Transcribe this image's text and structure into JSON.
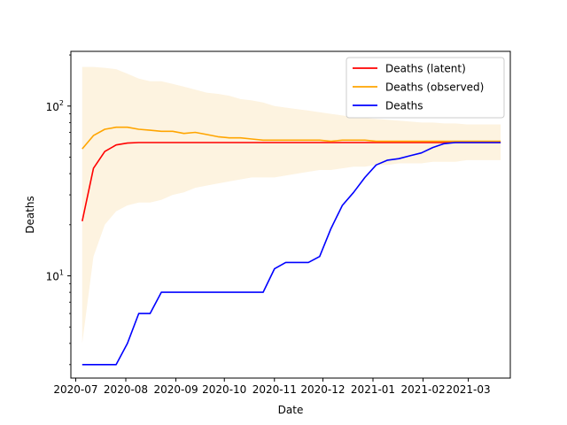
{
  "chart_data": {
    "type": "line",
    "title": "",
    "xlabel": "Date",
    "ylabel": "Deaths",
    "y_scale": "log",
    "ylim": [
      2.5,
      210
    ],
    "xlim": [
      "2020-06-28",
      "2021-03-27"
    ],
    "x_ticks": [
      "2020-07",
      "2020-08",
      "2020-09",
      "2020-10",
      "2020-11",
      "2020-12",
      "2021-01",
      "2021-02",
      "2021-03"
    ],
    "x_tick_dates": [
      "2020-07-01",
      "2020-08-01",
      "2020-09-01",
      "2020-10-01",
      "2020-11-01",
      "2020-12-01",
      "2021-01-01",
      "2021-02-01",
      "2021-03-01"
    ],
    "y_ticks": [
      {
        "value": 10,
        "base": "10",
        "exp": "1"
      },
      {
        "value": 100,
        "base": "10",
        "exp": "2"
      }
    ],
    "y_minor_ticks": [
      3,
      4,
      5,
      6,
      7,
      8,
      9,
      20,
      30,
      40,
      50,
      60,
      70,
      80,
      90,
      200
    ],
    "legend_position": "top-right",
    "grid": false,
    "band": {
      "color": "#fdf3e0",
      "dates": [
        "2020-07-05",
        "2020-07-12",
        "2020-07-19",
        "2020-07-26",
        "2020-08-02",
        "2020-08-09",
        "2020-08-16",
        "2020-08-23",
        "2020-08-30",
        "2020-09-06",
        "2020-09-13",
        "2020-09-20",
        "2020-09-27",
        "2020-10-04",
        "2020-10-11",
        "2020-10-18",
        "2020-10-25",
        "2020-11-01",
        "2020-11-08",
        "2020-11-15",
        "2020-11-22",
        "2020-11-29",
        "2020-12-06",
        "2020-12-13",
        "2020-12-20",
        "2020-12-27",
        "2021-01-03",
        "2021-01-10",
        "2021-01-17",
        "2021-01-24",
        "2021-01-31",
        "2021-02-07",
        "2021-02-14",
        "2021-02-21",
        "2021-02-28",
        "2021-03-07",
        "2021-03-14",
        "2021-03-21"
      ],
      "upper": [
        170,
        170,
        168,
        165,
        155,
        145,
        140,
        140,
        135,
        130,
        125,
        120,
        118,
        115,
        110,
        108,
        105,
        100,
        98,
        96,
        94,
        92,
        90,
        88,
        86,
        85,
        84,
        83,
        82,
        81,
        80,
        80,
        79,
        79,
        78,
        78,
        78,
        78
      ],
      "lower": [
        4,
        13,
        20,
        24,
        26,
        27,
        27,
        28,
        30,
        31,
        33,
        34,
        35,
        36,
        37,
        38,
        38,
        38,
        39,
        40,
        41,
        42,
        42,
        43,
        44,
        44,
        45,
        45,
        46,
        46,
        46,
        47,
        47,
        47,
        48,
        48,
        48,
        48
      ]
    },
    "series": [
      {
        "name": "Deaths (latent)",
        "color": "#ff0000",
        "x": [
          "2020-07-05",
          "2020-07-12",
          "2020-07-19",
          "2020-07-26",
          "2020-08-02",
          "2020-08-09",
          "2020-08-16",
          "2020-08-23",
          "2020-08-30",
          "2020-09-06",
          "2020-09-13",
          "2020-09-20",
          "2020-09-27",
          "2020-10-04",
          "2020-10-11",
          "2020-10-18",
          "2020-10-25",
          "2020-11-01",
          "2020-11-08",
          "2020-11-15",
          "2020-11-22",
          "2020-11-29",
          "2020-12-06",
          "2020-12-13",
          "2020-12-20",
          "2020-12-27",
          "2021-01-03",
          "2021-01-10",
          "2021-01-17",
          "2021-01-24",
          "2021-01-31",
          "2021-02-07",
          "2021-02-14",
          "2021-02-21",
          "2021-02-28",
          "2021-03-07",
          "2021-03-14",
          "2021-03-21"
        ],
        "values": [
          21,
          43,
          54,
          59,
          60.5,
          61,
          61,
          61,
          61,
          61,
          61,
          61,
          61,
          61,
          61,
          61,
          61,
          61,
          61,
          61,
          61,
          61,
          61,
          61,
          61,
          61,
          61,
          61,
          61,
          61,
          61,
          61,
          61,
          61,
          61,
          61,
          61,
          61
        ]
      },
      {
        "name": "Deaths (observed)",
        "color": "#ffa500",
        "x": [
          "2020-07-05",
          "2020-07-12",
          "2020-07-19",
          "2020-07-26",
          "2020-08-02",
          "2020-08-09",
          "2020-08-16",
          "2020-08-23",
          "2020-08-30",
          "2020-09-06",
          "2020-09-13",
          "2020-09-20",
          "2020-09-27",
          "2020-10-04",
          "2020-10-11",
          "2020-10-18",
          "2020-10-25",
          "2020-11-01",
          "2020-11-08",
          "2020-11-15",
          "2020-11-22",
          "2020-11-29",
          "2020-12-06",
          "2020-12-13",
          "2020-12-20",
          "2020-12-27",
          "2021-01-03",
          "2021-01-10",
          "2021-01-17",
          "2021-01-24",
          "2021-01-31",
          "2021-02-07",
          "2021-02-14",
          "2021-02-21",
          "2021-02-28",
          "2021-03-07",
          "2021-03-14",
          "2021-03-21"
        ],
        "values": [
          56,
          67,
          73,
          75,
          75,
          73,
          72,
          71,
          71,
          69,
          70,
          68,
          66,
          65,
          65,
          64,
          63,
          63,
          63,
          63,
          63,
          63,
          62,
          63,
          63,
          63,
          62,
          62,
          62,
          62,
          62,
          62,
          62,
          62,
          62,
          62,
          62,
          62
        ]
      },
      {
        "name": "Deaths",
        "color": "#0000ff",
        "x": [
          "2020-07-05",
          "2020-07-12",
          "2020-07-19",
          "2020-07-26",
          "2020-08-02",
          "2020-08-09",
          "2020-08-16",
          "2020-08-23",
          "2020-08-30",
          "2020-09-06",
          "2020-09-13",
          "2020-09-20",
          "2020-09-27",
          "2020-10-04",
          "2020-10-11",
          "2020-10-18",
          "2020-10-25",
          "2020-11-01",
          "2020-11-08",
          "2020-11-15",
          "2020-11-22",
          "2020-11-29",
          "2020-12-06",
          "2020-12-13",
          "2020-12-20",
          "2020-12-27",
          "2021-01-03",
          "2021-01-10",
          "2021-01-17",
          "2021-01-24",
          "2021-01-31",
          "2021-02-07",
          "2021-02-14",
          "2021-02-21",
          "2021-02-28",
          "2021-03-07",
          "2021-03-14",
          "2021-03-21"
        ],
        "values": [
          3,
          3,
          3,
          3,
          4,
          6,
          6,
          8,
          8,
          8,
          8,
          8,
          8,
          8,
          8,
          8,
          8,
          11,
          12,
          12,
          12,
          13,
          19,
          26,
          31,
          38,
          45,
          48,
          49,
          51,
          53,
          57,
          60,
          61,
          61,
          61,
          61,
          61
        ]
      }
    ]
  }
}
